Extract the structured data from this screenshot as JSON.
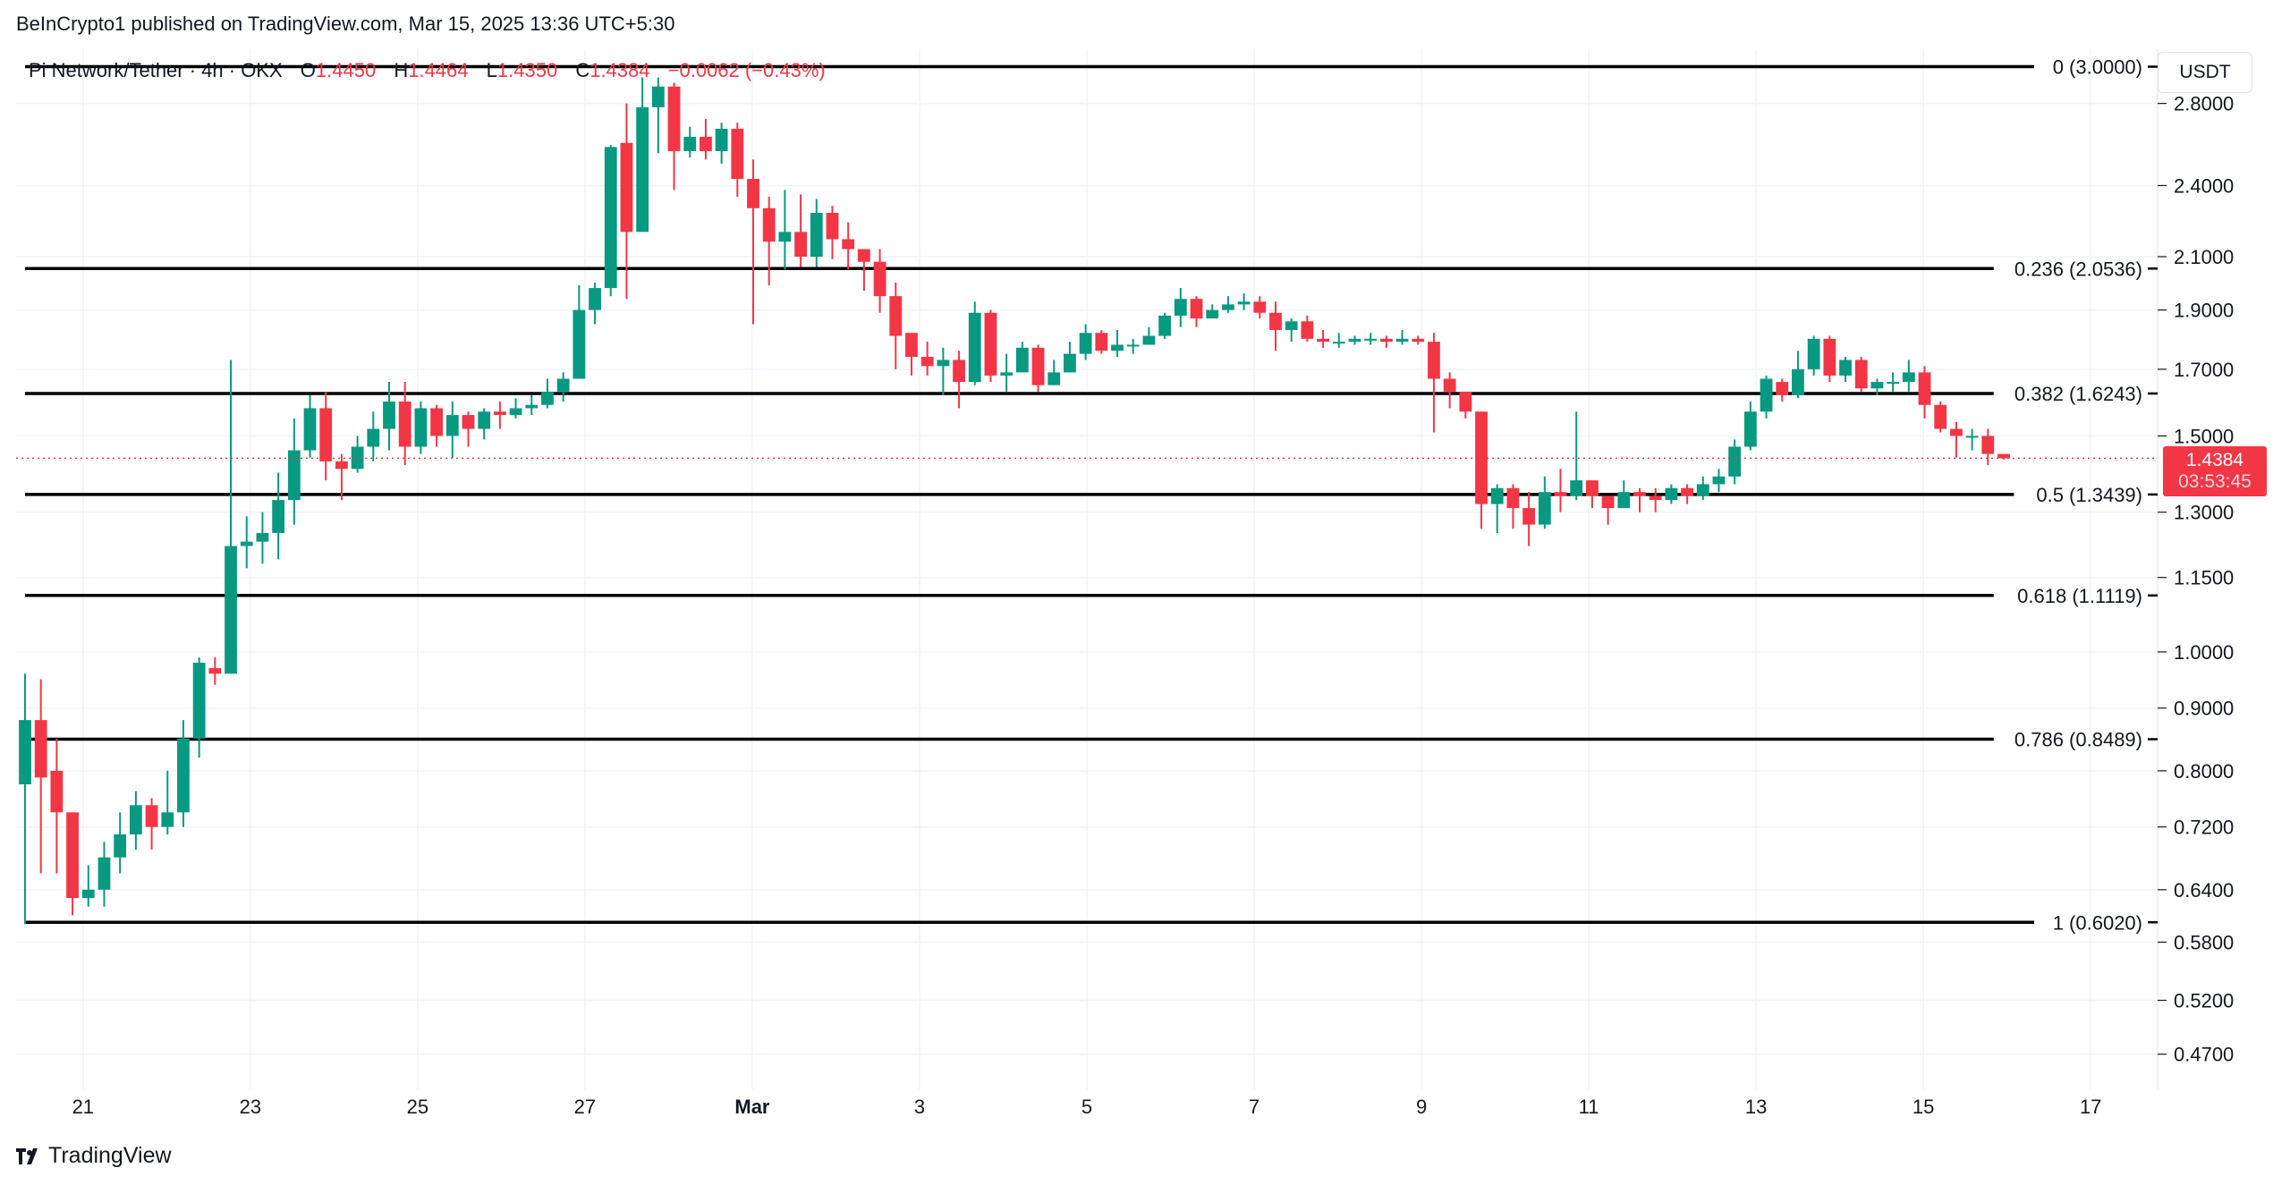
{
  "header": {
    "publish_line": "BeInCrypto1 published on TradingView.com, Mar 15, 2025 13:36 UTC+5:30"
  },
  "legend": {
    "symbol": "Pi Network/Tether · 4h · OKX",
    "o_label": "O",
    "o_value": "1.4450",
    "h_label": "H",
    "h_value": "1.4464",
    "l_label": "L",
    "l_value": "1.4350",
    "c_label": "C",
    "c_value": "1.4384",
    "change": "−0.0062 (−0.43%)"
  },
  "currency_button": "USDT",
  "last_price": {
    "price": "1.4384",
    "countdown": "03:53:45"
  },
  "footer": {
    "brand": "TradingView"
  },
  "colors": {
    "up": "#089981",
    "down": "#f23645",
    "fib_line": "#000000",
    "grid": "#f0f3fa"
  },
  "chart_data": {
    "type": "candlestick",
    "scale": "log",
    "ylim": [
      0.44,
      3.1
    ],
    "y_ticks": [
      "2.8000",
      "2.4000",
      "2.1000",
      "1.9000",
      "1.7000",
      "1.5000",
      "1.3000",
      "1.1500",
      "1.0000",
      "0.9000",
      "0.8000",
      "0.7200",
      "0.6400",
      "0.5800",
      "0.5200",
      "0.4700"
    ],
    "x_ticks": [
      {
        "label": "21",
        "t": 0.8,
        "bold": false
      },
      {
        "label": "23",
        "t": 2.8,
        "bold": false
      },
      {
        "label": "25",
        "t": 4.8,
        "bold": false
      },
      {
        "label": "27",
        "t": 6.8,
        "bold": false
      },
      {
        "label": "Mar",
        "t": 8.8,
        "bold": true
      },
      {
        "label": "3",
        "t": 10.8,
        "bold": false
      },
      {
        "label": "5",
        "t": 12.8,
        "bold": false
      },
      {
        "label": "7",
        "t": 14.8,
        "bold": false
      },
      {
        "label": "9",
        "t": 16.8,
        "bold": false
      },
      {
        "label": "11",
        "t": 18.8,
        "bold": false
      },
      {
        "label": "13",
        "t": 20.8,
        "bold": false
      },
      {
        "label": "15",
        "t": 22.8,
        "bold": false
      },
      {
        "label": "17",
        "t": 24.8,
        "bold": false
      }
    ],
    "fib_levels": [
      {
        "label": "0 (3.0000)",
        "value": 3.0
      },
      {
        "label": "0.236 (2.0536)",
        "value": 2.0536
      },
      {
        "label": "0.382 (1.6243)",
        "value": 1.6243
      },
      {
        "label": "0.5 (1.3439)",
        "value": 1.3439
      },
      {
        "label": "0.618 (1.1119)",
        "value": 1.1119
      },
      {
        "label": "0.786 (0.8489)",
        "value": 0.8489
      },
      {
        "label": "1 (0.6020)",
        "value": 0.602
      }
    ],
    "last_price": 1.4384,
    "candles": [
      [
        0.78,
        0.88,
        0.96,
        0.6
      ],
      [
        0.88,
        0.79,
        0.95,
        0.66
      ],
      [
        0.8,
        0.74,
        0.85,
        0.66
      ],
      [
        0.74,
        0.63,
        0.74,
        0.61
      ],
      [
        0.63,
        0.64,
        0.67,
        0.62
      ],
      [
        0.64,
        0.68,
        0.7,
        0.62
      ],
      [
        0.68,
        0.71,
        0.74,
        0.66
      ],
      [
        0.71,
        0.75,
        0.77,
        0.69
      ],
      [
        0.75,
        0.72,
        0.76,
        0.69
      ],
      [
        0.72,
        0.74,
        0.8,
        0.71
      ],
      [
        0.74,
        0.85,
        0.88,
        0.72
      ],
      [
        0.85,
        0.98,
        0.99,
        0.82
      ],
      [
        0.97,
        0.96,
        0.99,
        0.94
      ],
      [
        0.96,
        1.22,
        1.73,
        0.96
      ],
      [
        1.22,
        1.23,
        1.29,
        1.17
      ],
      [
        1.23,
        1.25,
        1.3,
        1.18
      ],
      [
        1.25,
        1.33,
        1.4,
        1.19
      ],
      [
        1.33,
        1.46,
        1.55,
        1.27
      ],
      [
        1.46,
        1.58,
        1.62,
        1.44
      ],
      [
        1.58,
        1.43,
        1.63,
        1.38
      ],
      [
        1.43,
        1.41,
        1.45,
        1.33
      ],
      [
        1.41,
        1.47,
        1.5,
        1.4
      ],
      [
        1.47,
        1.52,
        1.57,
        1.43
      ],
      [
        1.52,
        1.6,
        1.66,
        1.46
      ],
      [
        1.6,
        1.47,
        1.66,
        1.42
      ],
      [
        1.47,
        1.58,
        1.6,
        1.45
      ],
      [
        1.58,
        1.5,
        1.59,
        1.47
      ],
      [
        1.5,
        1.56,
        1.6,
        1.44
      ],
      [
        1.56,
        1.52,
        1.57,
        1.47
      ],
      [
        1.52,
        1.57,
        1.58,
        1.49
      ],
      [
        1.57,
        1.56,
        1.6,
        1.52
      ],
      [
        1.56,
        1.58,
        1.61,
        1.55
      ],
      [
        1.58,
        1.59,
        1.62,
        1.56
      ],
      [
        1.59,
        1.63,
        1.67,
        1.58
      ],
      [
        1.63,
        1.67,
        1.69,
        1.6
      ],
      [
        1.67,
        1.9,
        1.99,
        1.67
      ],
      [
        1.9,
        1.98,
        2.0,
        1.85
      ],
      [
        1.98,
        2.58,
        2.59,
        1.95
      ],
      [
        2.6,
        2.2,
        2.8,
        1.94
      ],
      [
        2.2,
        2.78,
        2.94,
        2.3
      ],
      [
        2.78,
        2.89,
        2.94,
        2.55
      ],
      [
        2.89,
        2.56,
        2.91,
        2.38
      ],
      [
        2.56,
        2.63,
        2.68,
        2.53
      ],
      [
        2.63,
        2.56,
        2.72,
        2.52
      ],
      [
        2.56,
        2.67,
        2.7,
        2.5
      ],
      [
        2.67,
        2.43,
        2.7,
        2.35
      ],
      [
        2.43,
        2.3,
        2.52,
        1.85
      ],
      [
        2.3,
        2.16,
        2.35,
        1.99
      ],
      [
        2.16,
        2.2,
        2.38,
        2.05
      ],
      [
        2.2,
        2.1,
        2.36,
        2.06
      ],
      [
        2.1,
        2.28,
        2.34,
        2.06
      ],
      [
        2.28,
        2.17,
        2.31,
        2.09
      ],
      [
        2.17,
        2.13,
        2.24,
        2.05
      ],
      [
        2.13,
        2.08,
        2.12,
        1.97
      ],
      [
        2.08,
        1.95,
        2.13,
        1.89
      ],
      [
        1.95,
        1.81,
        2.0,
        1.7
      ],
      [
        1.82,
        1.74,
        1.78,
        1.68
      ],
      [
        1.74,
        1.71,
        1.79,
        1.68
      ],
      [
        1.71,
        1.73,
        1.77,
        1.62
      ],
      [
        1.73,
        1.66,
        1.76,
        1.58
      ],
      [
        1.66,
        1.89,
        1.93,
        1.65
      ],
      [
        1.89,
        1.68,
        1.9,
        1.66
      ],
      [
        1.68,
        1.69,
        1.75,
        1.63
      ],
      [
        1.69,
        1.77,
        1.79,
        1.69
      ],
      [
        1.77,
        1.65,
        1.78,
        1.63
      ],
      [
        1.65,
        1.69,
        1.73,
        1.65
      ],
      [
        1.69,
        1.75,
        1.79,
        1.69
      ],
      [
        1.75,
        1.82,
        1.85,
        1.73
      ],
      [
        1.82,
        1.76,
        1.83,
        1.75
      ],
      [
        1.76,
        1.78,
        1.83,
        1.74
      ],
      [
        1.78,
        1.78,
        1.8,
        1.75
      ],
      [
        1.78,
        1.81,
        1.84,
        1.78
      ],
      [
        1.81,
        1.88,
        1.89,
        1.8
      ],
      [
        1.88,
        1.94,
        1.98,
        1.84
      ],
      [
        1.94,
        1.87,
        1.95,
        1.84
      ],
      [
        1.87,
        1.9,
        1.92,
        1.88
      ],
      [
        1.9,
        1.92,
        1.95,
        1.89
      ],
      [
        1.92,
        1.93,
        1.96,
        1.9
      ],
      [
        1.93,
        1.89,
        1.95,
        1.87
      ],
      [
        1.89,
        1.83,
        1.93,
        1.76
      ],
      [
        1.83,
        1.86,
        1.87,
        1.79
      ],
      [
        1.86,
        1.8,
        1.88,
        1.79
      ],
      [
        1.8,
        1.79,
        1.83,
        1.77
      ],
      [
        1.79,
        1.79,
        1.82,
        1.77
      ],
      [
        1.79,
        1.8,
        1.81,
        1.78
      ],
      [
        1.8,
        1.8,
        1.82,
        1.78
      ],
      [
        1.8,
        1.79,
        1.81,
        1.77
      ],
      [
        1.79,
        1.8,
        1.83,
        1.78
      ],
      [
        1.8,
        1.79,
        1.81,
        1.78
      ],
      [
        1.79,
        1.67,
        1.82,
        1.51
      ],
      [
        1.67,
        1.63,
        1.69,
        1.58
      ],
      [
        1.63,
        1.57,
        1.63,
        1.55
      ],
      [
        1.57,
        1.32,
        1.57,
        1.26
      ],
      [
        1.32,
        1.36,
        1.37,
        1.25
      ],
      [
        1.36,
        1.31,
        1.37,
        1.26
      ],
      [
        1.31,
        1.27,
        1.35,
        1.22
      ],
      [
        1.27,
        1.35,
        1.39,
        1.26
      ],
      [
        1.35,
        1.34,
        1.41,
        1.3
      ],
      [
        1.34,
        1.38,
        1.57,
        1.33
      ],
      [
        1.38,
        1.34,
        1.37,
        1.31
      ],
      [
        1.34,
        1.31,
        1.34,
        1.27
      ],
      [
        1.31,
        1.35,
        1.38,
        1.31
      ],
      [
        1.35,
        1.34,
        1.36,
        1.3
      ],
      [
        1.34,
        1.33,
        1.36,
        1.3
      ],
      [
        1.33,
        1.36,
        1.37,
        1.32
      ],
      [
        1.36,
        1.34,
        1.37,
        1.32
      ],
      [
        1.34,
        1.37,
        1.39,
        1.33
      ],
      [
        1.37,
        1.39,
        1.41,
        1.35
      ],
      [
        1.39,
        1.47,
        1.49,
        1.37
      ],
      [
        1.47,
        1.57,
        1.6,
        1.46
      ],
      [
        1.57,
        1.67,
        1.68,
        1.55
      ],
      [
        1.66,
        1.62,
        1.67,
        1.6
      ],
      [
        1.62,
        1.7,
        1.76,
        1.61
      ],
      [
        1.7,
        1.8,
        1.81,
        1.68
      ],
      [
        1.8,
        1.68,
        1.81,
        1.66
      ],
      [
        1.68,
        1.73,
        1.74,
        1.66
      ],
      [
        1.73,
        1.64,
        1.74,
        1.63
      ],
      [
        1.64,
        1.66,
        1.67,
        1.62
      ],
      [
        1.66,
        1.66,
        1.69,
        1.63
      ],
      [
        1.66,
        1.69,
        1.73,
        1.63
      ],
      [
        1.69,
        1.59,
        1.71,
        1.55
      ],
      [
        1.59,
        1.52,
        1.6,
        1.51
      ],
      [
        1.52,
        1.5,
        1.54,
        1.44
      ],
      [
        1.5,
        1.5,
        1.52,
        1.46
      ],
      [
        1.5,
        1.45,
        1.52,
        1.42
      ],
      [
        1.45,
        1.4384,
        1.4464,
        1.435
      ]
    ]
  }
}
